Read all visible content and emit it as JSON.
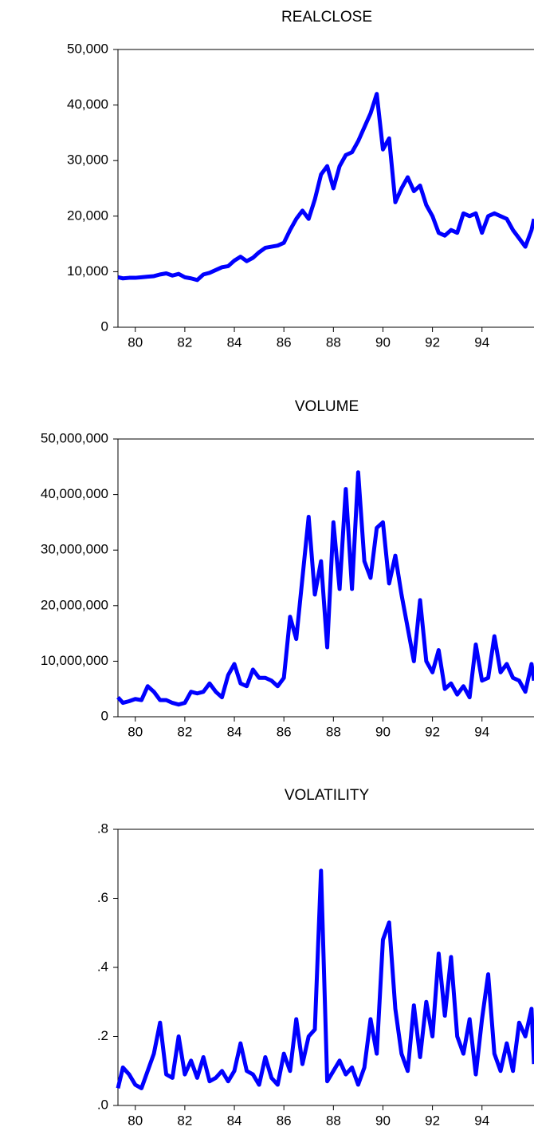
{
  "chart_data": [
    {
      "type": "line",
      "title": "REALCLOSE",
      "x": [
        79.3,
        79.5,
        79.75,
        80,
        80.25,
        80.5,
        80.75,
        81,
        81.25,
        81.5,
        81.75,
        82,
        82.25,
        82.5,
        82.75,
        83,
        83.25,
        83.5,
        83.75,
        84,
        84.25,
        84.5,
        84.75,
        85,
        85.25,
        85.5,
        85.75,
        86,
        86.25,
        86.5,
        86.75,
        87,
        87.25,
        87.5,
        87.75,
        88,
        88.25,
        88.5,
        88.75,
        89,
        89.25,
        89.5,
        89.75,
        90,
        90.25,
        90.5,
        90.75,
        91,
        91.25,
        91.5,
        91.75,
        92,
        92.25,
        92.5,
        92.75,
        93,
        93.25,
        93.5,
        93.75,
        94,
        94.25,
        94.5,
        94.75,
        95,
        95.25,
        95.5,
        95.75,
        96,
        96.1
      ],
      "values": [
        9000,
        8800,
        8900,
        8900,
        9000,
        9100,
        9200,
        9500,
        9700,
        9300,
        9600,
        9000,
        8800,
        8500,
        9500,
        9800,
        10300,
        10800,
        11000,
        12000,
        12700,
        11900,
        12500,
        13500,
        14300,
        14500,
        14700,
        15200,
        17500,
        19500,
        21000,
        19500,
        23000,
        27500,
        29000,
        25000,
        29000,
        31000,
        31500,
        33500,
        36000,
        38500,
        42000,
        32000,
        34000,
        22500,
        25000,
        27000,
        24500,
        25500,
        22000,
        20000,
        17000,
        16500,
        17500,
        17000,
        20500,
        20000,
        20500,
        17000,
        20000,
        20500,
        20000,
        19500,
        17500,
        16000,
        14500,
        17500,
        19500
      ],
      "color": "#0000ff",
      "xlim": [
        79.3,
        96.1
      ],
      "xticks": [
        80,
        82,
        84,
        86,
        88,
        90,
        92,
        94
      ],
      "ylim": [
        0,
        50000
      ],
      "yticks": [
        0,
        {
          "value": 10000,
          "label": "10,000"
        },
        {
          "value": 20000,
          "label": "20,000"
        },
        {
          "value": 30000,
          "label": "30,000"
        },
        {
          "value": 40000,
          "label": "40,000"
        },
        {
          "value": 50000,
          "label": "50,000"
        }
      ]
    },
    {
      "type": "line",
      "title": "VOLUME",
      "x": [
        79.3,
        79.5,
        79.75,
        80,
        80.25,
        80.5,
        80.75,
        81,
        81.25,
        81.5,
        81.75,
        82,
        82.25,
        82.5,
        82.75,
        83,
        83.25,
        83.5,
        83.75,
        84,
        84.25,
        84.5,
        84.75,
        85,
        85.25,
        85.5,
        85.75,
        86,
        86.25,
        86.5,
        86.75,
        87,
        87.25,
        87.5,
        87.75,
        88,
        88.25,
        88.5,
        88.75,
        89,
        89.25,
        89.5,
        89.75,
        90,
        90.25,
        90.5,
        90.75,
        91,
        91.25,
        91.5,
        91.75,
        92,
        92.25,
        92.5,
        92.75,
        93,
        93.25,
        93.5,
        93.75,
        94,
        94.25,
        94.5,
        94.75,
        95,
        95.25,
        95.5,
        95.75,
        96,
        96.1
      ],
      "values": [
        3500000,
        2500000,
        2800000,
        3200000,
        3000000,
        5500000,
        4500000,
        3000000,
        3000000,
        2500000,
        2200000,
        2500000,
        4500000,
        4200000,
        4500000,
        6000000,
        4500000,
        3500000,
        7500000,
        9500000,
        6000000,
        5500000,
        8500000,
        7000000,
        7000000,
        6500000,
        5500000,
        7000000,
        18000000,
        14000000,
        25000000,
        36000000,
        22000000,
        28000000,
        12500000,
        35000000,
        23000000,
        41000000,
        23000000,
        44000000,
        28000000,
        25000000,
        34000000,
        35000000,
        24000000,
        29000000,
        22000000,
        16000000,
        10000000,
        21000000,
        10000000,
        8000000,
        12000000,
        5000000,
        6000000,
        4000000,
        5500000,
        3500000,
        13000000,
        6500000,
        7000000,
        14500000,
        8000000,
        9500000,
        7000000,
        6500000,
        4500000,
        9500000,
        6500000
      ],
      "color": "#0000ff",
      "xlim": [
        79.3,
        96.1
      ],
      "xticks": [
        80,
        82,
        84,
        86,
        88,
        90,
        92,
        94
      ],
      "ylim": [
        0,
        50000000
      ],
      "yticks": [
        0,
        {
          "value": 10000000,
          "label": "10,000,000"
        },
        {
          "value": 20000000,
          "label": "20,000,000"
        },
        {
          "value": 30000000,
          "label": "30,000,000"
        },
        {
          "value": 40000000,
          "label": "40,000,000"
        },
        {
          "value": 50000000,
          "label": "50,000,000"
        }
      ]
    },
    {
      "type": "line",
      "title": "VOLATILITY",
      "x": [
        79.3,
        79.5,
        79.75,
        80,
        80.25,
        80.5,
        80.75,
        81,
        81.25,
        81.5,
        81.75,
        82,
        82.25,
        82.5,
        82.75,
        83,
        83.25,
        83.5,
        83.75,
        84,
        84.25,
        84.5,
        84.75,
        85,
        85.25,
        85.5,
        85.75,
        86,
        86.25,
        86.5,
        86.75,
        87,
        87.25,
        87.5,
        87.75,
        88,
        88.25,
        88.5,
        88.75,
        89,
        89.25,
        89.5,
        89.75,
        90,
        90.25,
        90.5,
        90.75,
        91,
        91.25,
        91.5,
        91.75,
        92,
        92.25,
        92.5,
        92.75,
        93,
        93.25,
        93.5,
        93.75,
        94,
        94.25,
        94.5,
        94.75,
        95,
        95.25,
        95.5,
        95.75,
        96,
        96.1
      ],
      "values": [
        0.05,
        0.11,
        0.09,
        0.06,
        0.05,
        0.1,
        0.15,
        0.24,
        0.09,
        0.08,
        0.2,
        0.09,
        0.13,
        0.08,
        0.14,
        0.07,
        0.08,
        0.1,
        0.07,
        0.1,
        0.18,
        0.1,
        0.09,
        0.06,
        0.14,
        0.08,
        0.06,
        0.15,
        0.1,
        0.25,
        0.12,
        0.2,
        0.22,
        0.68,
        0.07,
        0.1,
        0.13,
        0.09,
        0.11,
        0.06,
        0.11,
        0.25,
        0.15,
        0.48,
        0.53,
        0.28,
        0.15,
        0.1,
        0.29,
        0.14,
        0.3,
        0.2,
        0.44,
        0.26,
        0.43,
        0.2,
        0.15,
        0.25,
        0.09,
        0.25,
        0.38,
        0.15,
        0.1,
        0.18,
        0.1,
        0.24,
        0.2,
        0.28,
        0.12
      ],
      "color": "#0000ff",
      "xlim": [
        79.3,
        96.1
      ],
      "xticks": [
        80,
        82,
        84,
        86,
        88,
        90,
        92,
        94
      ],
      "ylim": [
        0,
        0.8
      ],
      "yticks": [
        {
          "value": 0,
          "label": ".0"
        },
        {
          "value": 0.2,
          "label": ".2"
        },
        {
          "value": 0.4,
          "label": ".4"
        },
        {
          "value": 0.6,
          "label": ".6"
        },
        {
          "value": 0.8,
          "label": ".8"
        }
      ]
    }
  ]
}
